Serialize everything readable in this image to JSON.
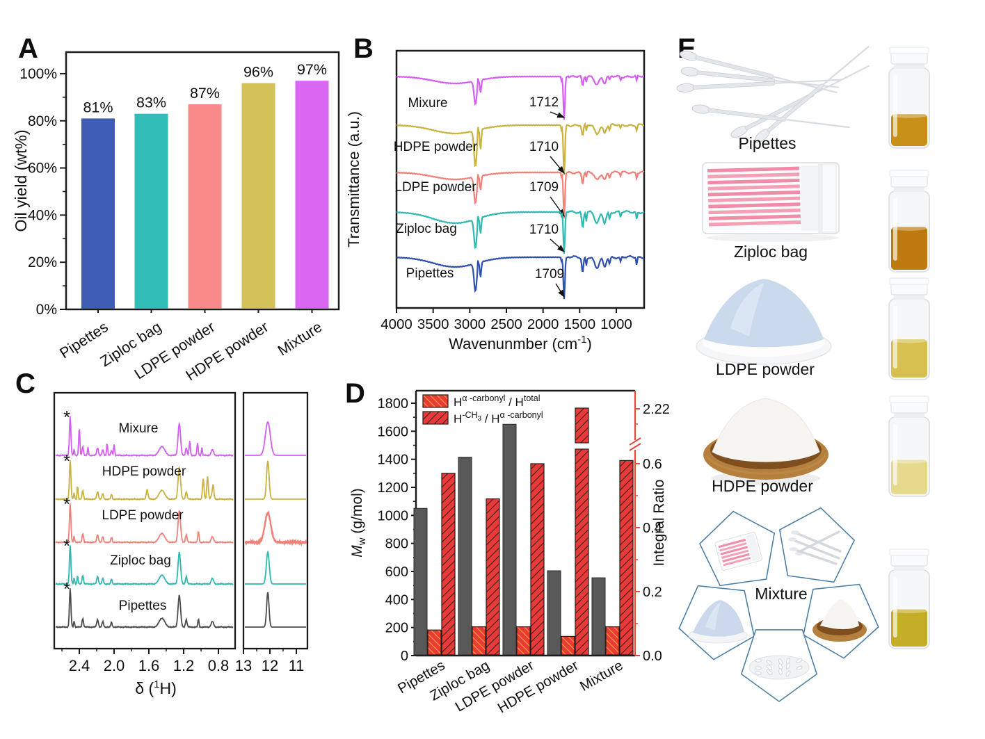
{
  "panels": {
    "a": {
      "letter": "A",
      "ylabel": "Oil yield (wt%)",
      "y_tick_labels": [
        "0%",
        "20%",
        "40%",
        "60%",
        "80%",
        "100%"
      ],
      "y_tick_values": [
        0,
        20,
        40,
        60,
        80,
        100
      ],
      "categories": [
        "Pipettes",
        "Ziploc bag",
        "LDPE powder",
        "HDPE powder",
        "Mixture"
      ],
      "values": [
        81,
        83,
        87,
        96,
        97
      ],
      "value_labels": [
        "81%",
        "83%",
        "87%",
        "96%",
        "97%"
      ],
      "bar_colors": [
        "#3e5cb4",
        "#33bdb8",
        "#f88a8a",
        "#d3c257",
        "#d967f1"
      ]
    },
    "b": {
      "letter": "B",
      "ylabel": "Transmittance (a.u.)",
      "xlabel_pre": "Wavenunmber (cm",
      "xlabel_sup": "-1",
      "xlabel_post": ")",
      "x_tick_labels": [
        "4000",
        "3500",
        "3000",
        "2500",
        "2000",
        "1500",
        "1000"
      ],
      "x_tick_values": [
        4000,
        3500,
        3000,
        2500,
        2000,
        1500,
        1000
      ],
      "traces": [
        {
          "label": "Mixure",
          "color": "#d55ef2",
          "peak_label": "1712"
        },
        {
          "label": "HDPE powder",
          "color": "#c9b23e",
          "peak_label": "1710"
        },
        {
          "label": "LDPE powder",
          "color": "#f08078",
          "peak_label": "1709"
        },
        {
          "label": "Ziploc bag",
          "color": "#2eb8b0",
          "peak_label": "1710"
        },
        {
          "label": "Pipettes",
          "color": "#2d4fae",
          "peak_label": "1709"
        }
      ]
    },
    "c": {
      "letter": "C",
      "xlabel_pre": "δ (",
      "xlabel_sup": "1",
      "xlabel_post": "H)",
      "left_tick_labels": [
        "2.4",
        "2.0",
        "1.6",
        "1.2",
        "0.8"
      ],
      "left_tick_values": [
        2.4,
        2.0,
        1.6,
        1.2,
        0.8
      ],
      "right_tick_labels": [
        "13",
        "12",
        "11"
      ],
      "right_tick_values": [
        13,
        12,
        11
      ],
      "solvent_marker": "*",
      "traces": [
        {
          "label": "Mixure",
          "color": "#d55ef2"
        },
        {
          "label": "HDPE powder",
          "color": "#c9b23e"
        },
        {
          "label": "LDPE powder",
          "color": "#f08078"
        },
        {
          "label": "Ziploc bag",
          "color": "#2eb8b0"
        },
        {
          "label": "Pipettes",
          "color": "#4c4c4e"
        }
      ]
    },
    "d": {
      "letter": "D",
      "ylabel_left_main": "M",
      "ylabel_left_sub": "w",
      "ylabel_left_rest": " (g/mol)",
      "ylabel_right": "Integral Ratio",
      "left_tick_values": [
        0,
        200,
        400,
        600,
        800,
        1000,
        1200,
        1400,
        1600,
        1800
      ],
      "right_tick_labels": [
        "0.0",
        "0.2",
        "0.4",
        "0.6"
      ],
      "right_top_tick_label": "2.22",
      "categories": [
        "Pipettes",
        "Ziploc bag",
        "LDPE powder",
        "HDPE powder",
        "Mixture"
      ],
      "mw_values": [
        1050,
        1415,
        1650,
        605,
        555
      ],
      "ratio_carbonyl_total": [
        0.08,
        0.09,
        0.09,
        0.06,
        0.09
      ],
      "ratio_ch3_carbonyl": [
        0.57,
        0.49,
        0.6,
        2.22,
        0.61
      ],
      "legend": [
        {
          "segments": [
            {
              "t": "H",
              "m": "n"
            },
            {
              "t": "α -carbonyl",
              "m": "sup"
            },
            {
              "t": " / H",
              "m": "n"
            },
            {
              "t": "total",
              "m": "sup"
            }
          ]
        },
        {
          "segments": [
            {
              "t": "H",
              "m": "n"
            },
            {
              "t": "-CH",
              "m": "sup"
            },
            {
              "t": "3",
              "m": "supsub"
            },
            {
              "t": " / H",
              "m": "n"
            },
            {
              "t": "α -carbonyl",
              "m": "sup"
            }
          ]
        }
      ],
      "bar_gray": "#595959",
      "bar_red": "#e83a38",
      "hatch_yellow": "#f0a030",
      "axis_red": "#e8453c"
    },
    "e": {
      "letter": "E",
      "items": [
        {
          "label": "Pipettes",
          "oil_color": "#c89018",
          "oil_fill": 0.42
        },
        {
          "label": "Ziploc bag",
          "oil_color": "#bd7a0e",
          "oil_fill": 0.56
        },
        {
          "label": "LDPE powder",
          "oil_color": "#d7c050",
          "oil_fill": 0.5
        },
        {
          "label": "HDPE powder",
          "oil_color": "#e5d98e",
          "oil_fill": 0.46
        },
        {
          "label": "Mixture",
          "oil_color": "#c4ae28",
          "oil_fill": 0.5
        }
      ],
      "mixture_center_label": "Mixture"
    }
  },
  "chart_data": [
    {
      "panel": "A",
      "type": "bar",
      "categories": [
        "Pipettes",
        "Ziploc bag",
        "LDPE powder",
        "HDPE powder",
        "Mixture"
      ],
      "values": [
        81,
        83,
        87,
        96,
        97
      ],
      "value_labels": [
        "81%",
        "83%",
        "87%",
        "96%",
        "97%"
      ],
      "title": "",
      "xlabel": "",
      "ylabel": "Oil yield (wt%)",
      "ylim": [
        0,
        110
      ],
      "y_ticks": [
        "0%",
        "20%",
        "40%",
        "60%",
        "80%",
        "100%"
      ]
    },
    {
      "panel": "B",
      "type": "line",
      "xlabel": "Wavenunmber (cm-1)",
      "ylabel": "Transmittance (a.u.)",
      "x_range": [
        4000,
        600
      ],
      "x_reversed": true,
      "x_ticks": [
        4000,
        3500,
        3000,
        2500,
        2000,
        1500,
        1000
      ],
      "series": [
        "Mixure",
        "HDPE powder",
        "LDPE powder",
        "Ziploc bag",
        "Pipettes"
      ],
      "carbonyl_peak_annotations": [
        1712,
        1710,
        1709,
        1710,
        1709
      ]
    },
    {
      "panel": "C",
      "type": "line",
      "xlabel": "δ (1H)",
      "x_ticks_left": [
        2.4,
        2.0,
        1.6,
        1.2,
        0.8
      ],
      "x_ticks_right": [
        13,
        12,
        11
      ],
      "series": [
        "Mixure",
        "HDPE powder",
        "LDPE powder",
        "Ziploc bag",
        "Pipettes"
      ],
      "solvent_peak_marker": "*",
      "solvent_peak_ppm": 2.5,
      "right_panel_peak_ppm": 12.1
    },
    {
      "panel": "D",
      "type": "bar",
      "categories": [
        "Pipettes",
        "Ziploc bag",
        "LDPE powder",
        "HDPE powder",
        "Mixture"
      ],
      "series": [
        {
          "name": "Mw (g/mol)",
          "axis": "left",
          "values": [
            1050,
            1415,
            1650,
            605,
            555
          ]
        },
        {
          "name": "Hα-carbonyl / Htotal",
          "axis": "right",
          "values": [
            0.08,
            0.09,
            0.09,
            0.06,
            0.09
          ]
        },
        {
          "name": "H-CH3 / Hα-carbonyl",
          "axis": "right",
          "values": [
            0.57,
            0.49,
            0.6,
            2.22,
            0.61
          ]
        }
      ],
      "ylabel_left": "Mw (g/mol)",
      "ylabel_right": "Integral Ratio",
      "left_ticks": [
        0,
        200,
        400,
        600,
        800,
        1000,
        1200,
        1400,
        1600,
        1800
      ],
      "right_ticks": [
        0.0,
        0.2,
        0.4,
        0.6,
        2.22
      ],
      "right_axis_break": true,
      "legend_position": "top-left"
    }
  ]
}
